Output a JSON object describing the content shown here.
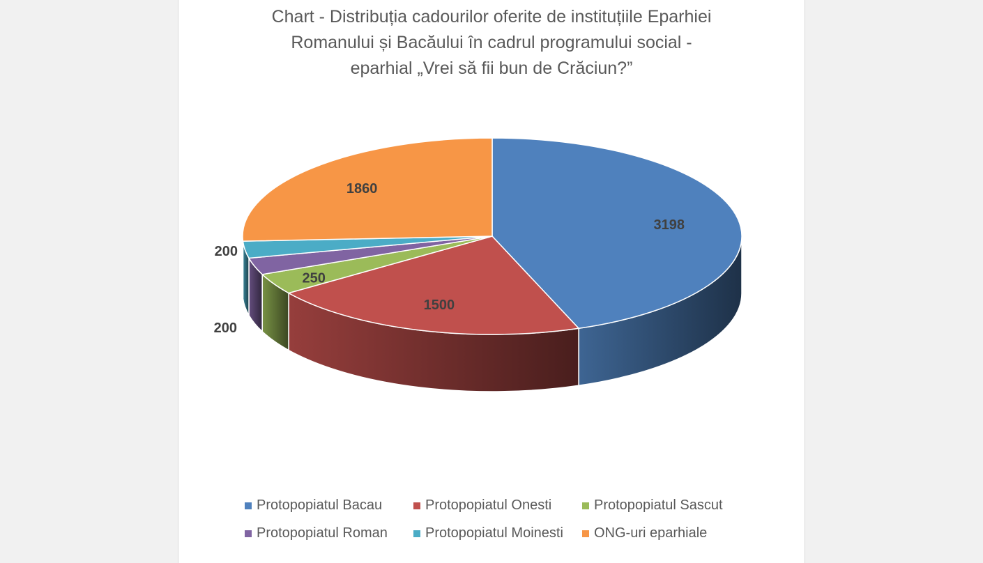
{
  "chart_data": {
    "type": "pie",
    "title_lines": [
      "Chart - Distribuția cadourilor oferite de instituțiile Eparhiei",
      "Romanului și Bacăului în cadrul programului social -",
      "eparhial „Vrei să fii bun de Crăciun?”"
    ],
    "categories": [
      "Protopopiatul Bacau",
      "Protopopiatul Onesti",
      "Protopopiatul Sascut",
      "Protopopiatul Roman",
      "Protopopiatul Moinesti",
      "ONG-uri eparhiale"
    ],
    "values": [
      3198,
      1500,
      250,
      200,
      200,
      1860
    ],
    "data_labels": [
      "3198",
      "1500",
      "250",
      "200",
      "200",
      "1860"
    ],
    "colors": [
      "#4f81bd",
      "#c0504d",
      "#9bbb59",
      "#8064a2",
      "#4bacc6",
      "#f79646"
    ],
    "style": "3d",
    "legend_position": "bottom"
  }
}
